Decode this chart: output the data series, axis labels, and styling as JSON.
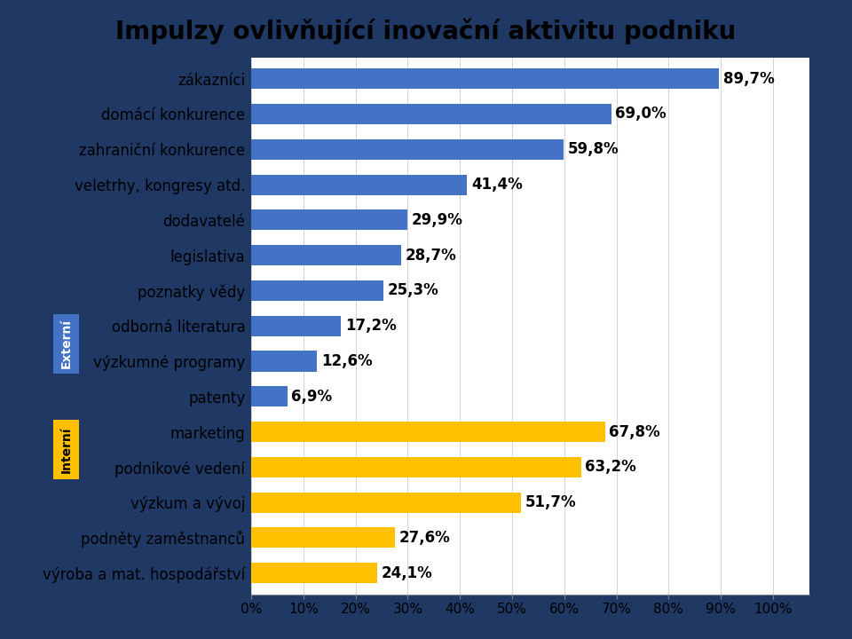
{
  "title": "Impulzy ovlivňující inovační aktivitu podniku",
  "categories": [
    "zákazníci",
    "domácí konkurence",
    "zahraniční konkurence",
    "veletrhy, kongresy atd.",
    "dodavatelé",
    "legislativa",
    "poznatky vědy",
    "odborná literatura",
    "výzkumné programy",
    "patenty",
    "marketing",
    "podnikové vedení",
    "výzkum a vývoj",
    "podněty zaměstnanců",
    "výroba a mat. hospodářství"
  ],
  "values": [
    89.7,
    69.0,
    59.8,
    41.4,
    29.9,
    28.7,
    25.3,
    17.2,
    12.6,
    6.9,
    67.8,
    63.2,
    51.7,
    27.6,
    24.1
  ],
  "colors": [
    "#4472C4",
    "#4472C4",
    "#4472C4",
    "#4472C4",
    "#4472C4",
    "#4472C4",
    "#4472C4",
    "#4472C4",
    "#4472C4",
    "#4472C4",
    "#FFC000",
    "#FFC000",
    "#FFC000",
    "#FFC000",
    "#FFC000"
  ],
  "labels": [
    "89,7%",
    "69,0%",
    "59,8%",
    "41,4%",
    "29,9%",
    "28,7%",
    "25,3%",
    "17,2%",
    "12,6%",
    "6,9%",
    "67,8%",
    "63,2%",
    "51,7%",
    "27,6%",
    "24,1%"
  ],
  "background_color": "#1F3864",
  "plot_bg_color": "#FFFFFF",
  "title_fontsize": 20,
  "label_fontsize": 12,
  "tick_fontsize": 11,
  "extern_label": "Externí",
  "intern_label": "Interní",
  "extern_color": "#4472C4",
  "intern_color": "#FFC000",
  "extern_indices": [
    7,
    8
  ],
  "intern_indices": [
    10,
    11
  ]
}
